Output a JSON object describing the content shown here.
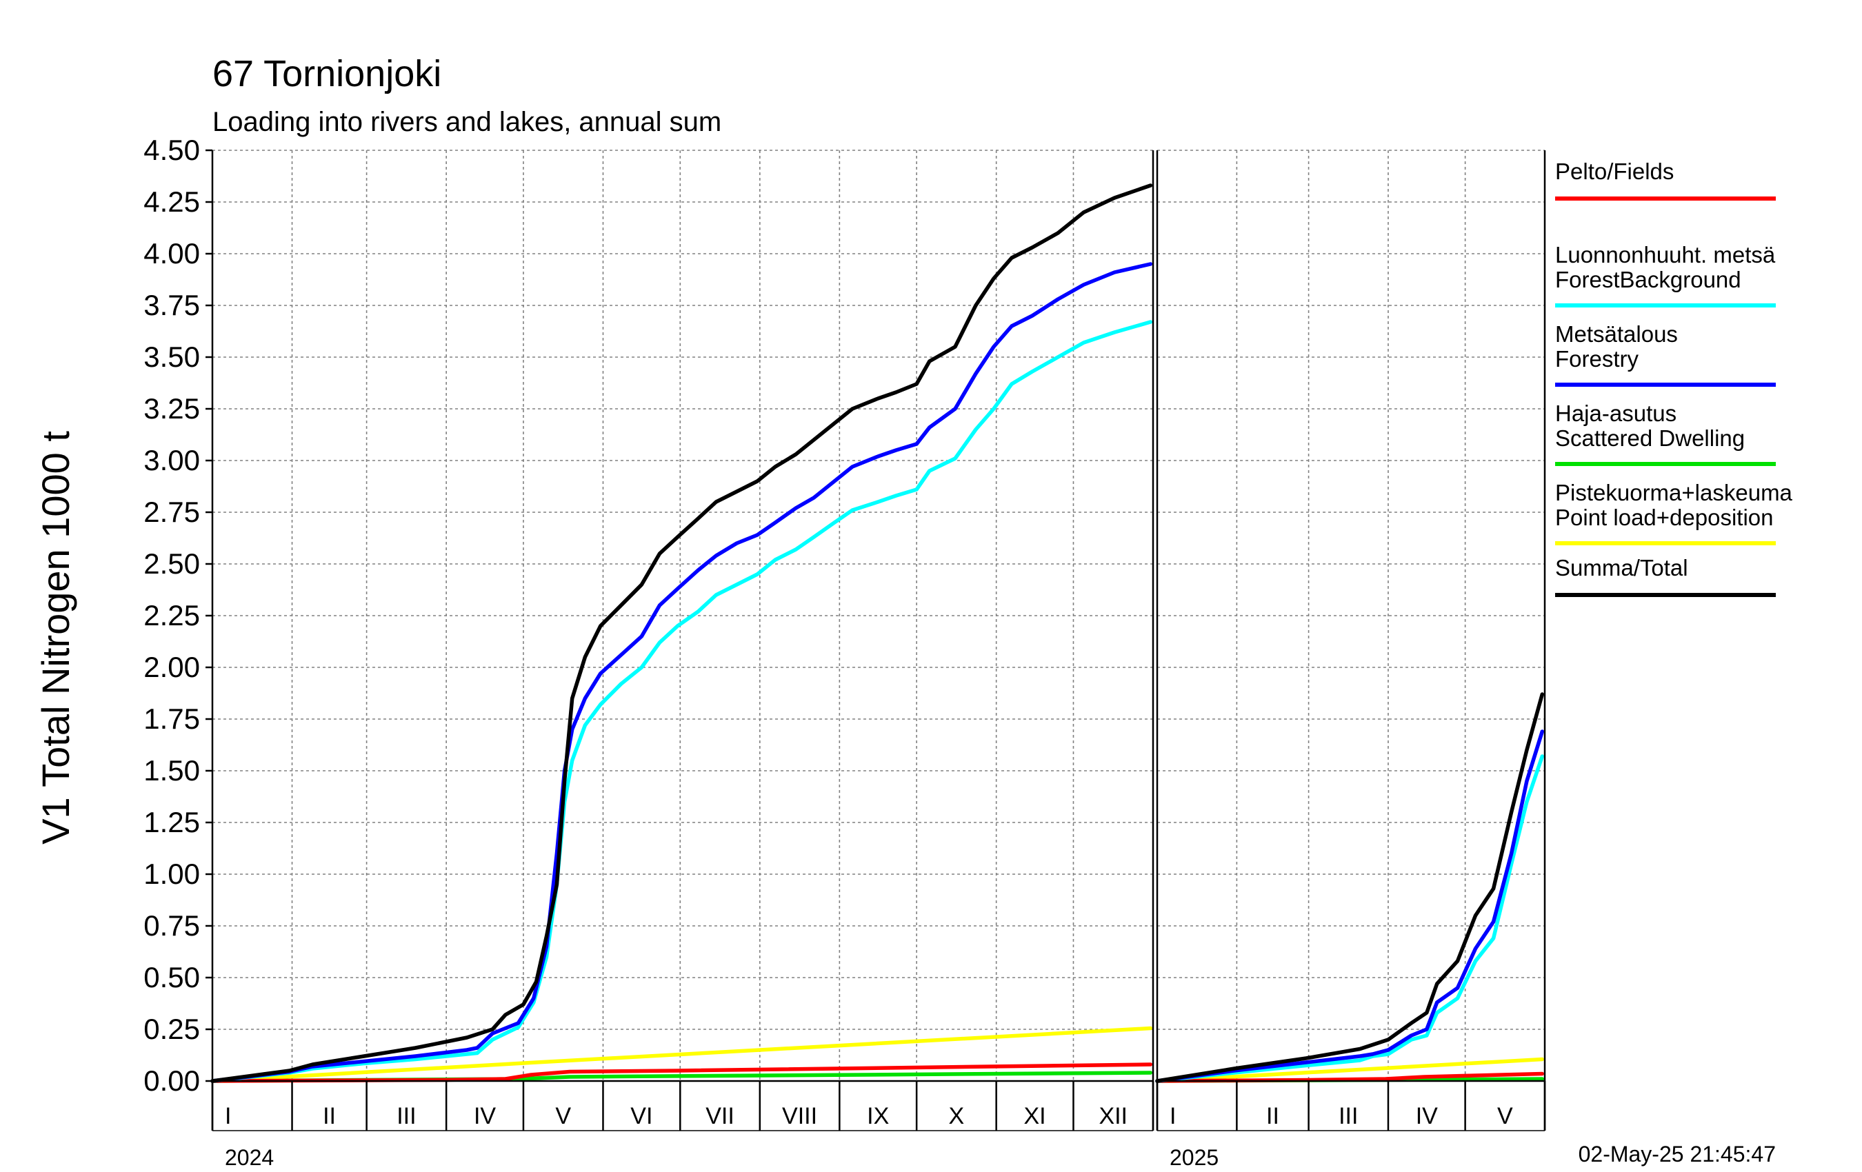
{
  "chart_data": {
    "type": "line",
    "title": "67 Tornionjoki",
    "subtitle": "Loading into rivers and lakes, annual sum",
    "ylabel": "V1 Total Nitrogen 1000 t",
    "ylim": [
      0,
      4.5
    ],
    "yticks": [
      "0.00",
      "0.25",
      "0.50",
      "0.75",
      "1.00",
      "1.25",
      "1.50",
      "1.75",
      "2.00",
      "2.25",
      "2.50",
      "2.75",
      "3.00",
      "3.25",
      "3.50",
      "3.75",
      "4.00",
      "4.25",
      "4.50"
    ],
    "grid": true,
    "legend_position": "right",
    "timestamp": "02-May-25 21:45:47",
    "panels": [
      {
        "year": "2024",
        "x_range": [
          1,
          366
        ],
        "months": [
          "I",
          "II",
          "III",
          "IV",
          "V",
          "VI",
          "VII",
          "VIII",
          "IX",
          "X",
          "XI",
          "XII"
        ]
      },
      {
        "year": "2025",
        "x_range": [
          1,
          151
        ],
        "months": [
          "I",
          "II",
          "III",
          "IV",
          "V"
        ]
      }
    ],
    "x_unit": "day of year",
    "series": [
      {
        "id": "fields",
        "name": "Pelto/Fields",
        "color": "#ff0000",
        "data_2024": [
          [
            1,
            0
          ],
          [
            92,
            0.005
          ],
          [
            115,
            0.01
          ],
          [
            125,
            0.03
          ],
          [
            140,
            0.045
          ],
          [
            182,
            0.05
          ],
          [
            366,
            0.08
          ]
        ],
        "data_2025": [
          [
            1,
            0
          ],
          [
            60,
            0.005
          ],
          [
            90,
            0.01
          ],
          [
            105,
            0.02
          ],
          [
            120,
            0.025
          ],
          [
            151,
            0.035
          ]
        ]
      },
      {
        "id": "forest_background",
        "name_line1": "Luonnonhuuht. metsä",
        "name_line2": "ForestBackground",
        "color": "#00ffff",
        "data_2024": [
          [
            1,
            0
          ],
          [
            31,
            0.04
          ],
          [
            40,
            0.06
          ],
          [
            60,
            0.085
          ],
          [
            80,
            0.105
          ],
          [
            100,
            0.13
          ],
          [
            104,
            0.135
          ],
          [
            110,
            0.2
          ],
          [
            120,
            0.26
          ],
          [
            126,
            0.38
          ],
          [
            131,
            0.6
          ],
          [
            135,
            0.95
          ],
          [
            138,
            1.35
          ],
          [
            141,
            1.55
          ],
          [
            146,
            1.72
          ],
          [
            152,
            1.82
          ],
          [
            160,
            1.92
          ],
          [
            168,
            2.0
          ],
          [
            175,
            2.12
          ],
          [
            182,
            2.2
          ],
          [
            190,
            2.27
          ],
          [
            197,
            2.35
          ],
          [
            205,
            2.4
          ],
          [
            213,
            2.45
          ],
          [
            220,
            2.52
          ],
          [
            228,
            2.57
          ],
          [
            235,
            2.63
          ],
          [
            243,
            2.7
          ],
          [
            250,
            2.76
          ],
          [
            260,
            2.8
          ],
          [
            267,
            2.83
          ],
          [
            275,
            2.86
          ],
          [
            280,
            2.95
          ],
          [
            290,
            3.01
          ],
          [
            298,
            3.15
          ],
          [
            305,
            3.25
          ],
          [
            312,
            3.37
          ],
          [
            320,
            3.43
          ],
          [
            330,
            3.5
          ],
          [
            340,
            3.57
          ],
          [
            352,
            3.62
          ],
          [
            366,
            3.67
          ]
        ],
        "data_2025": [
          [
            1,
            0
          ],
          [
            31,
            0.04
          ],
          [
            59,
            0.075
          ],
          [
            80,
            0.1
          ],
          [
            85,
            0.12
          ],
          [
            91,
            0.13
          ],
          [
            100,
            0.2
          ],
          [
            106,
            0.22
          ],
          [
            110,
            0.33
          ],
          [
            118,
            0.4
          ],
          [
            125,
            0.58
          ],
          [
            132,
            0.69
          ],
          [
            139,
            1.05
          ],
          [
            145,
            1.35
          ],
          [
            151,
            1.57
          ]
        ]
      },
      {
        "id": "forestry",
        "name_line1": "Metsätalous",
        "name_line2": "Forestry",
        "color": "#0000ff",
        "data_2024": [
          [
            1,
            0
          ],
          [
            31,
            0.045
          ],
          [
            40,
            0.07
          ],
          [
            60,
            0.095
          ],
          [
            80,
            0.12
          ],
          [
            100,
            0.15
          ],
          [
            104,
            0.16
          ],
          [
            110,
            0.23
          ],
          [
            120,
            0.28
          ],
          [
            126,
            0.4
          ],
          [
            131,
            0.65
          ],
          [
            135,
            1.1
          ],
          [
            138,
            1.5
          ],
          [
            141,
            1.7
          ],
          [
            146,
            1.85
          ],
          [
            152,
            1.97
          ],
          [
            160,
            2.06
          ],
          [
            168,
            2.15
          ],
          [
            175,
            2.3
          ],
          [
            182,
            2.38
          ],
          [
            190,
            2.47
          ],
          [
            197,
            2.54
          ],
          [
            205,
            2.6
          ],
          [
            213,
            2.64
          ],
          [
            220,
            2.7
          ],
          [
            228,
            2.77
          ],
          [
            235,
            2.82
          ],
          [
            243,
            2.9
          ],
          [
            250,
            2.97
          ],
          [
            260,
            3.02
          ],
          [
            267,
            3.05
          ],
          [
            275,
            3.08
          ],
          [
            280,
            3.16
          ],
          [
            290,
            3.25
          ],
          [
            298,
            3.42
          ],
          [
            305,
            3.55
          ],
          [
            312,
            3.65
          ],
          [
            320,
            3.7
          ],
          [
            330,
            3.78
          ],
          [
            340,
            3.85
          ],
          [
            352,
            3.91
          ],
          [
            366,
            3.95
          ]
        ],
        "data_2025": [
          [
            1,
            0
          ],
          [
            31,
            0.05
          ],
          [
            59,
            0.09
          ],
          [
            80,
            0.12
          ],
          [
            85,
            0.13
          ],
          [
            91,
            0.15
          ],
          [
            100,
            0.22
          ],
          [
            106,
            0.25
          ],
          [
            110,
            0.38
          ],
          [
            118,
            0.45
          ],
          [
            125,
            0.64
          ],
          [
            132,
            0.77
          ],
          [
            139,
            1.1
          ],
          [
            145,
            1.45
          ],
          [
            151,
            1.69
          ]
        ]
      },
      {
        "id": "scattered_dwelling",
        "name_line1": "Haja-asutus",
        "name_line2": "Scattered Dwelling",
        "color": "#00e000",
        "data_2024": [
          [
            1,
            0
          ],
          [
            120,
            0.01
          ],
          [
            140,
            0.02
          ],
          [
            366,
            0.04
          ]
        ],
        "data_2025": [
          [
            1,
            0
          ],
          [
            90,
            0.005
          ],
          [
            151,
            0.01
          ]
        ]
      },
      {
        "id": "point_load",
        "name_line1": "Pistekuorma+laskeuma",
        "name_line2": "Point load+deposition",
        "color": "#ffff00",
        "data_2024": [
          [
            1,
            0
          ],
          [
            120,
            0.085
          ],
          [
            366,
            0.255
          ]
        ],
        "data_2025": [
          [
            1,
            0
          ],
          [
            151,
            0.105
          ]
        ]
      },
      {
        "id": "total",
        "name": "Summa/Total",
        "color": "#000000",
        "data_2024": [
          [
            1,
            0
          ],
          [
            31,
            0.05
          ],
          [
            40,
            0.08
          ],
          [
            60,
            0.12
          ],
          [
            80,
            0.16
          ],
          [
            100,
            0.21
          ],
          [
            110,
            0.25
          ],
          [
            115,
            0.32
          ],
          [
            122,
            0.37
          ],
          [
            127,
            0.48
          ],
          [
            131,
            0.7
          ],
          [
            135,
            0.95
          ],
          [
            138,
            1.45
          ],
          [
            141,
            1.85
          ],
          [
            146,
            2.05
          ],
          [
            152,
            2.2
          ],
          [
            160,
            2.3
          ],
          [
            168,
            2.4
          ],
          [
            175,
            2.55
          ],
          [
            182,
            2.63
          ],
          [
            190,
            2.72
          ],
          [
            197,
            2.8
          ],
          [
            205,
            2.85
          ],
          [
            213,
            2.9
          ],
          [
            220,
            2.97
          ],
          [
            228,
            3.03
          ],
          [
            235,
            3.1
          ],
          [
            243,
            3.18
          ],
          [
            250,
            3.25
          ],
          [
            260,
            3.3
          ],
          [
            267,
            3.33
          ],
          [
            275,
            3.37
          ],
          [
            280,
            3.48
          ],
          [
            290,
            3.55
          ],
          [
            298,
            3.75
          ],
          [
            305,
            3.88
          ],
          [
            312,
            3.98
          ],
          [
            320,
            4.03
          ],
          [
            330,
            4.1
          ],
          [
            340,
            4.2
          ],
          [
            352,
            4.27
          ],
          [
            366,
            4.33
          ]
        ],
        "data_2025": [
          [
            1,
            0
          ],
          [
            31,
            0.06
          ],
          [
            59,
            0.11
          ],
          [
            80,
            0.155
          ],
          [
            91,
            0.2
          ],
          [
            100,
            0.28
          ],
          [
            106,
            0.33
          ],
          [
            110,
            0.47
          ],
          [
            118,
            0.58
          ],
          [
            125,
            0.8
          ],
          [
            132,
            0.93
          ],
          [
            139,
            1.3
          ],
          [
            145,
            1.6
          ],
          [
            151,
            1.87
          ]
        ]
      }
    ]
  }
}
